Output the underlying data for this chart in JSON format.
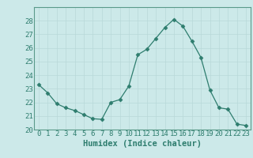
{
  "x": [
    0,
    1,
    2,
    3,
    4,
    5,
    6,
    7,
    8,
    9,
    10,
    11,
    12,
    13,
    14,
    15,
    16,
    17,
    18,
    19,
    20,
    21,
    22,
    23
  ],
  "y": [
    23.3,
    22.7,
    21.9,
    21.6,
    21.4,
    21.1,
    20.8,
    20.75,
    22.0,
    22.2,
    23.2,
    25.5,
    25.9,
    26.7,
    27.5,
    28.1,
    27.6,
    26.5,
    25.3,
    22.9,
    21.6,
    21.5,
    20.4,
    20.3
  ],
  "line_color": "#2e7d6e",
  "marker": "D",
  "marker_size": 2.5,
  "background_color": "#cce9e9",
  "grid_color": "#b8d8d8",
  "xlabel": "Humidex (Indice chaleur)",
  "ylim": [
    20,
    29
  ],
  "xlim": [
    -0.5,
    23.5
  ],
  "yticks": [
    20,
    21,
    22,
    23,
    24,
    25,
    26,
    27,
    28
  ],
  "xticks": [
    0,
    1,
    2,
    3,
    4,
    5,
    6,
    7,
    8,
    9,
    10,
    11,
    12,
    13,
    14,
    15,
    16,
    17,
    18,
    19,
    20,
    21,
    22,
    23
  ],
  "tick_fontsize": 6.5,
  "xlabel_fontsize": 7.5,
  "tick_color": "#2e7d6e",
  "spine_color": "#5a9a8a"
}
